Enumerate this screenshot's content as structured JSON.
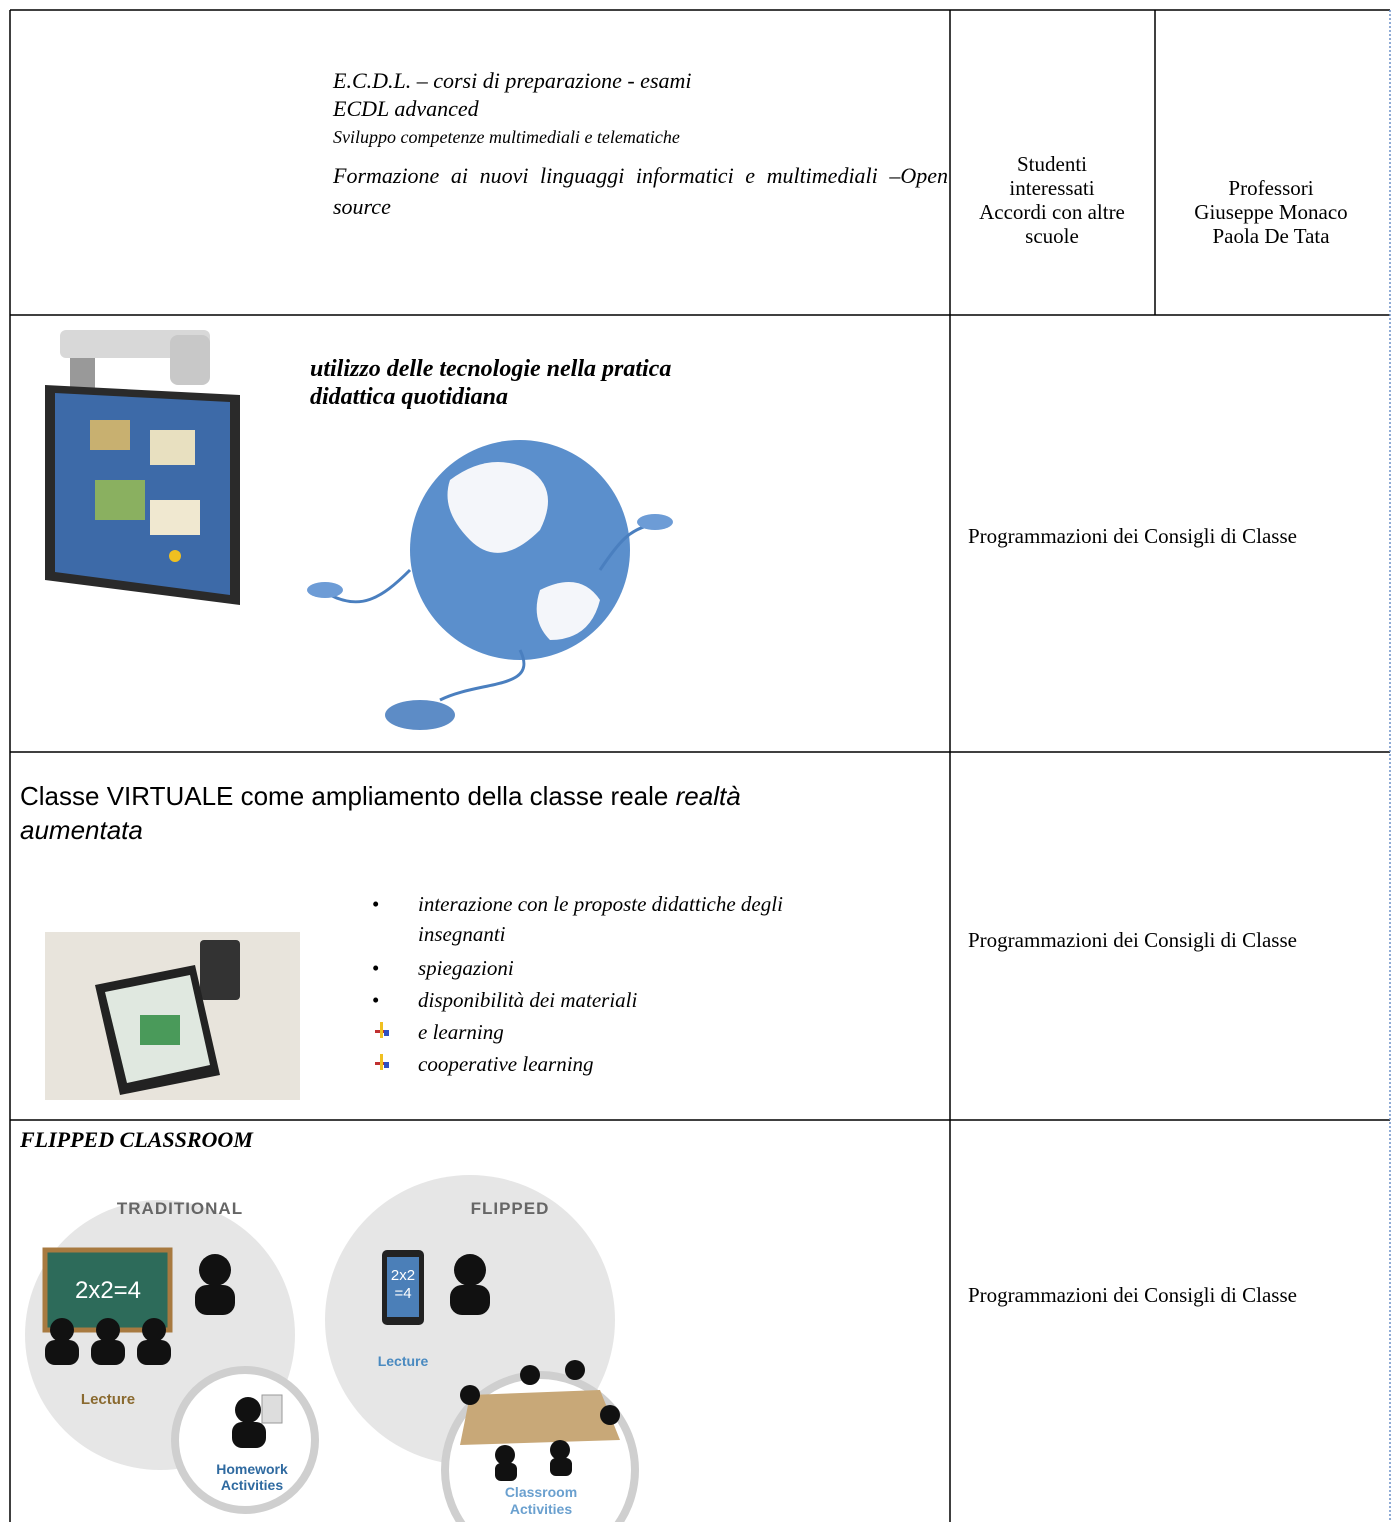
{
  "table": {
    "rows": [
      {
        "activities": [
          "E.C.D.L. – corsi di preparazione  - esami",
          "ECDL advanced",
          "Sviluppo competenze multimediali e telematiche",
          "Formazione ai nuovi linguaggi informatici e multimediali –Open source"
        ],
        "recipients": [
          "Studenti",
          "interessati",
          "Accordi con altre",
          "scuole"
        ],
        "teachers": [
          "Professori",
          "Giuseppe Monaco",
          "Paola De Tata"
        ]
      },
      {
        "title": [
          "utilizzo  delle tecnologie nella pratica",
          "didattica quotidiana"
        ],
        "reference": "Programmazioni dei Consigli di Classe"
      },
      {
        "title": "Classe VIRTUALE come  ampliamento della classe reale",
        "title_emphasis": [
          "realtà",
          "aumentata"
        ],
        "bullets": [
          "interazione con le proposte didattiche degli",
          "insegnanti",
          "spiegazioni",
          "disponibilità dei materiali"
        ],
        "arrow_items": [
          "e learning",
          "cooperative learning"
        ],
        "reference": "Programmazioni dei Consigli di Classe"
      },
      {
        "title": "FLIPPED CLASSROOM",
        "diagram": {
          "traditional": {
            "label": "TRADITIONAL",
            "board": "2x2=4",
            "lecture": "Lecture",
            "homework": [
              "Homework",
              "Activities"
            ]
          },
          "flipped": {
            "label": "FLIPPED",
            "tablet": [
              "2x2",
              "=4"
            ],
            "lecture": "Lecture",
            "classroom": [
              "Classroom",
              "Activities"
            ]
          }
        },
        "reference": "Programmazioni dei Consigli di Classe"
      }
    ]
  }
}
